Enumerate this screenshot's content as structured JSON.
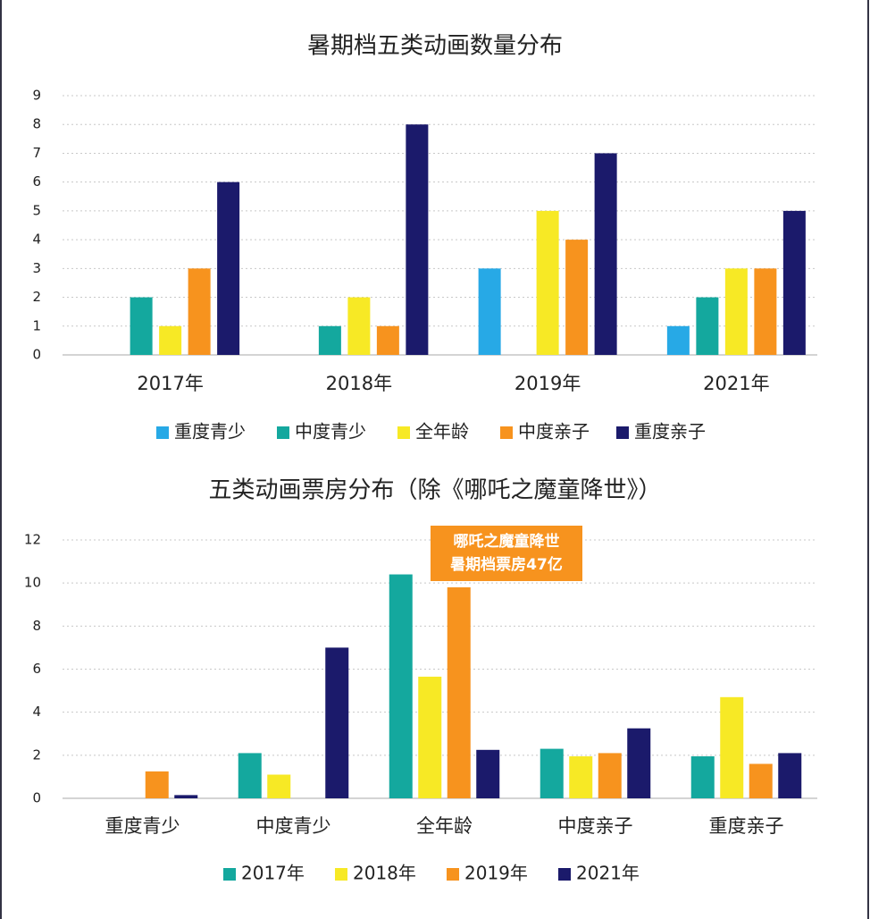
{
  "chart_data": [
    {
      "type": "bar",
      "title": "暑期档五类动画数量分布",
      "categories": [
        "2017年",
        "2018年",
        "2019年",
        "2021年"
      ],
      "series": [
        {
          "name": "重度青少",
          "color": "#27a9e6",
          "values": [
            0,
            0,
            3,
            1
          ]
        },
        {
          "name": "中度青少",
          "color": "#14a89e",
          "values": [
            2,
            1,
            0,
            2
          ]
        },
        {
          "name": "全年龄",
          "color": "#f7e925",
          "values": [
            1,
            2,
            5,
            3
          ]
        },
        {
          "name": "中度亲子",
          "color": "#f7931e",
          "values": [
            3,
            1,
            4,
            3
          ]
        },
        {
          "name": "重度亲子",
          "color": "#1b1a6b",
          "values": [
            6,
            8,
            7,
            5
          ]
        }
      ],
      "ylim": [
        0,
        9
      ],
      "yticks": [
        0,
        1,
        2,
        3,
        4,
        5,
        6,
        7,
        8,
        9
      ],
      "grid": true,
      "legend": "bottom"
    },
    {
      "type": "bar",
      "title": "五类动画票房分布（除《哪吒之魔童降世》）",
      "categories": [
        "重度青少",
        "中度青少",
        "全年龄",
        "中度亲子",
        "重度亲子"
      ],
      "series": [
        {
          "name": "2017年",
          "color": "#14a89e",
          "values": [
            0,
            2.1,
            10.4,
            2.3,
            1.95
          ]
        },
        {
          "name": "2018年",
          "color": "#f7e925",
          "values": [
            0,
            1.1,
            5.65,
            1.95,
            4.7
          ]
        },
        {
          "name": "2019年",
          "color": "#f7931e",
          "values": [
            1.25,
            0,
            9.8,
            2.1,
            1.6
          ]
        },
        {
          "name": "2021年",
          "color": "#1b1a6b",
          "values": [
            0.15,
            7.0,
            2.25,
            3.25,
            2.1
          ]
        }
      ],
      "ylim": [
        0,
        12
      ],
      "yticks": [
        0,
        2,
        4,
        6,
        8,
        10,
        12
      ],
      "grid": true,
      "legend": "bottom",
      "annotations": [
        "哪吒之魔童降世",
        "暑期档票房47亿"
      ]
    }
  ]
}
